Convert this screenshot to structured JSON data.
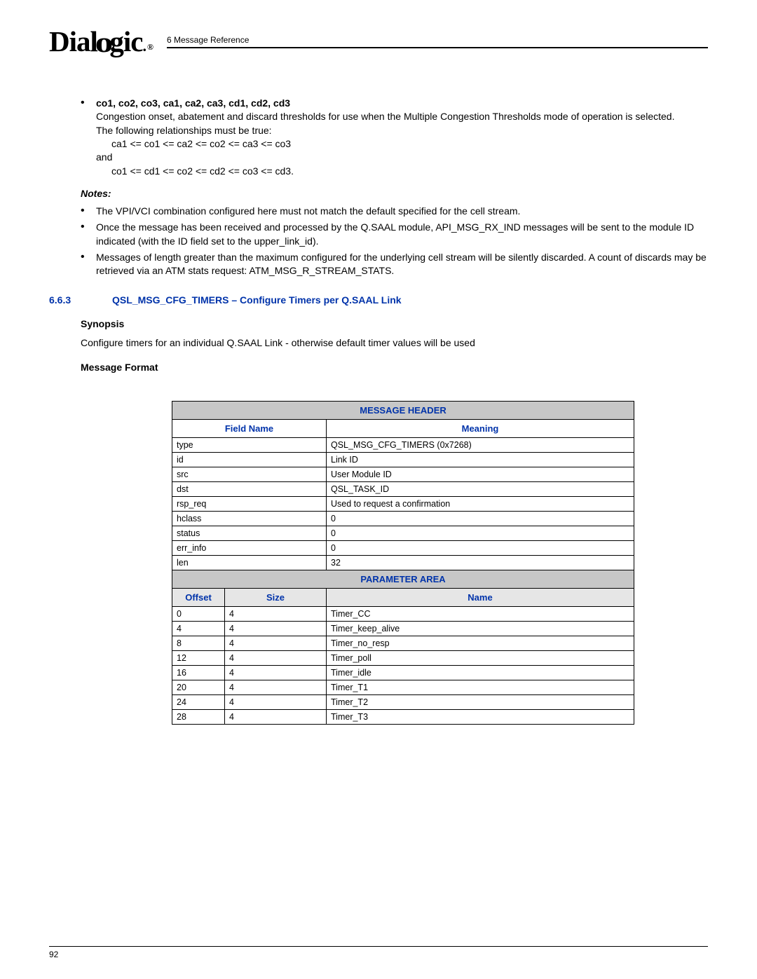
{
  "header": {
    "logo_main": "Dial",
    "logo_mid": "o",
    "logo_end": "gic",
    "logo_reg": "®",
    "breadcrumb": "6 Message Reference"
  },
  "bulletA": {
    "title": "co1, co2, co3, ca1, ca2, ca3, cd1, cd2, cd3",
    "line1": "Congestion onset, abatement and discard thresholds for use when the Multiple Congestion Thresholds mode of operation is selected.",
    "line2": "The following relationships must be true:",
    "rel1": "ca1 <= co1 <= ca2 <= co2 <= ca3 <= co3",
    "and": "and",
    "rel2": "co1 <= cd1 <= co2 <= cd2 <= co3 <= cd3."
  },
  "notes": {
    "header": "Notes:",
    "n1": "The VPI/VCI combination configured here must not match the default specified for the cell stream.",
    "n2": "Once the message has been received and processed by the Q.SAAL module, API_MSG_RX_IND messages will be sent to the module ID indicated (with the ID field set to the upper_link_id).",
    "n3": "Messages of length greater than the maximum configured for the underlying cell stream will be silently discarded.  A count of discards may be retrieved via an ATM stats request: ATM_MSG_R_STREAM_STATS."
  },
  "section": {
    "num": "6.6.3",
    "title": "QSL_MSG_CFG_TIMERS – Configure Timers per Q.SAAL Link"
  },
  "synopsis": {
    "header": "Synopsis",
    "text": "Configure timers for an individual Q.SAAL Link - otherwise default timer values will be used"
  },
  "msgformat": {
    "header": "Message Format"
  },
  "table": {
    "hdr_message": "MESSAGE HEADER",
    "col_field": "Field Name",
    "col_meaning": "Meaning",
    "rows1": [
      {
        "f": "type",
        "m": "QSL_MSG_CFG_TIMERS (0x7268)"
      },
      {
        "f": "id",
        "m": "Link ID"
      },
      {
        "f": "src",
        "m": "User Module ID"
      },
      {
        "f": "dst",
        "m": "QSL_TASK_ID"
      },
      {
        "f": "rsp_req",
        "m": "Used to request a confirmation"
      },
      {
        "f": "hclass",
        "m": "0"
      },
      {
        "f": "status",
        "m": "0"
      },
      {
        "f": "err_info",
        "m": "0"
      },
      {
        "f": "len",
        "m": "32"
      }
    ],
    "hdr_param": "PARAMETER AREA",
    "col_offset": "Offset",
    "col_size": "Size",
    "col_name": "Name",
    "rows2": [
      {
        "o": "0",
        "s": "4",
        "n": "Timer_CC"
      },
      {
        "o": "4",
        "s": "4",
        "n": "Timer_keep_alive"
      },
      {
        "o": "8",
        "s": "4",
        "n": "Timer_no_resp"
      },
      {
        "o": "12",
        "s": "4",
        "n": "Timer_poll"
      },
      {
        "o": "16",
        "s": "4",
        "n": "Timer_idle"
      },
      {
        "o": "20",
        "s": "4",
        "n": "Timer_T1"
      },
      {
        "o": "24",
        "s": "4",
        "n": "Timer_T2"
      },
      {
        "o": "28",
        "s": "4",
        "n": "Timer_T3"
      }
    ]
  },
  "footer": {
    "page": "92"
  }
}
